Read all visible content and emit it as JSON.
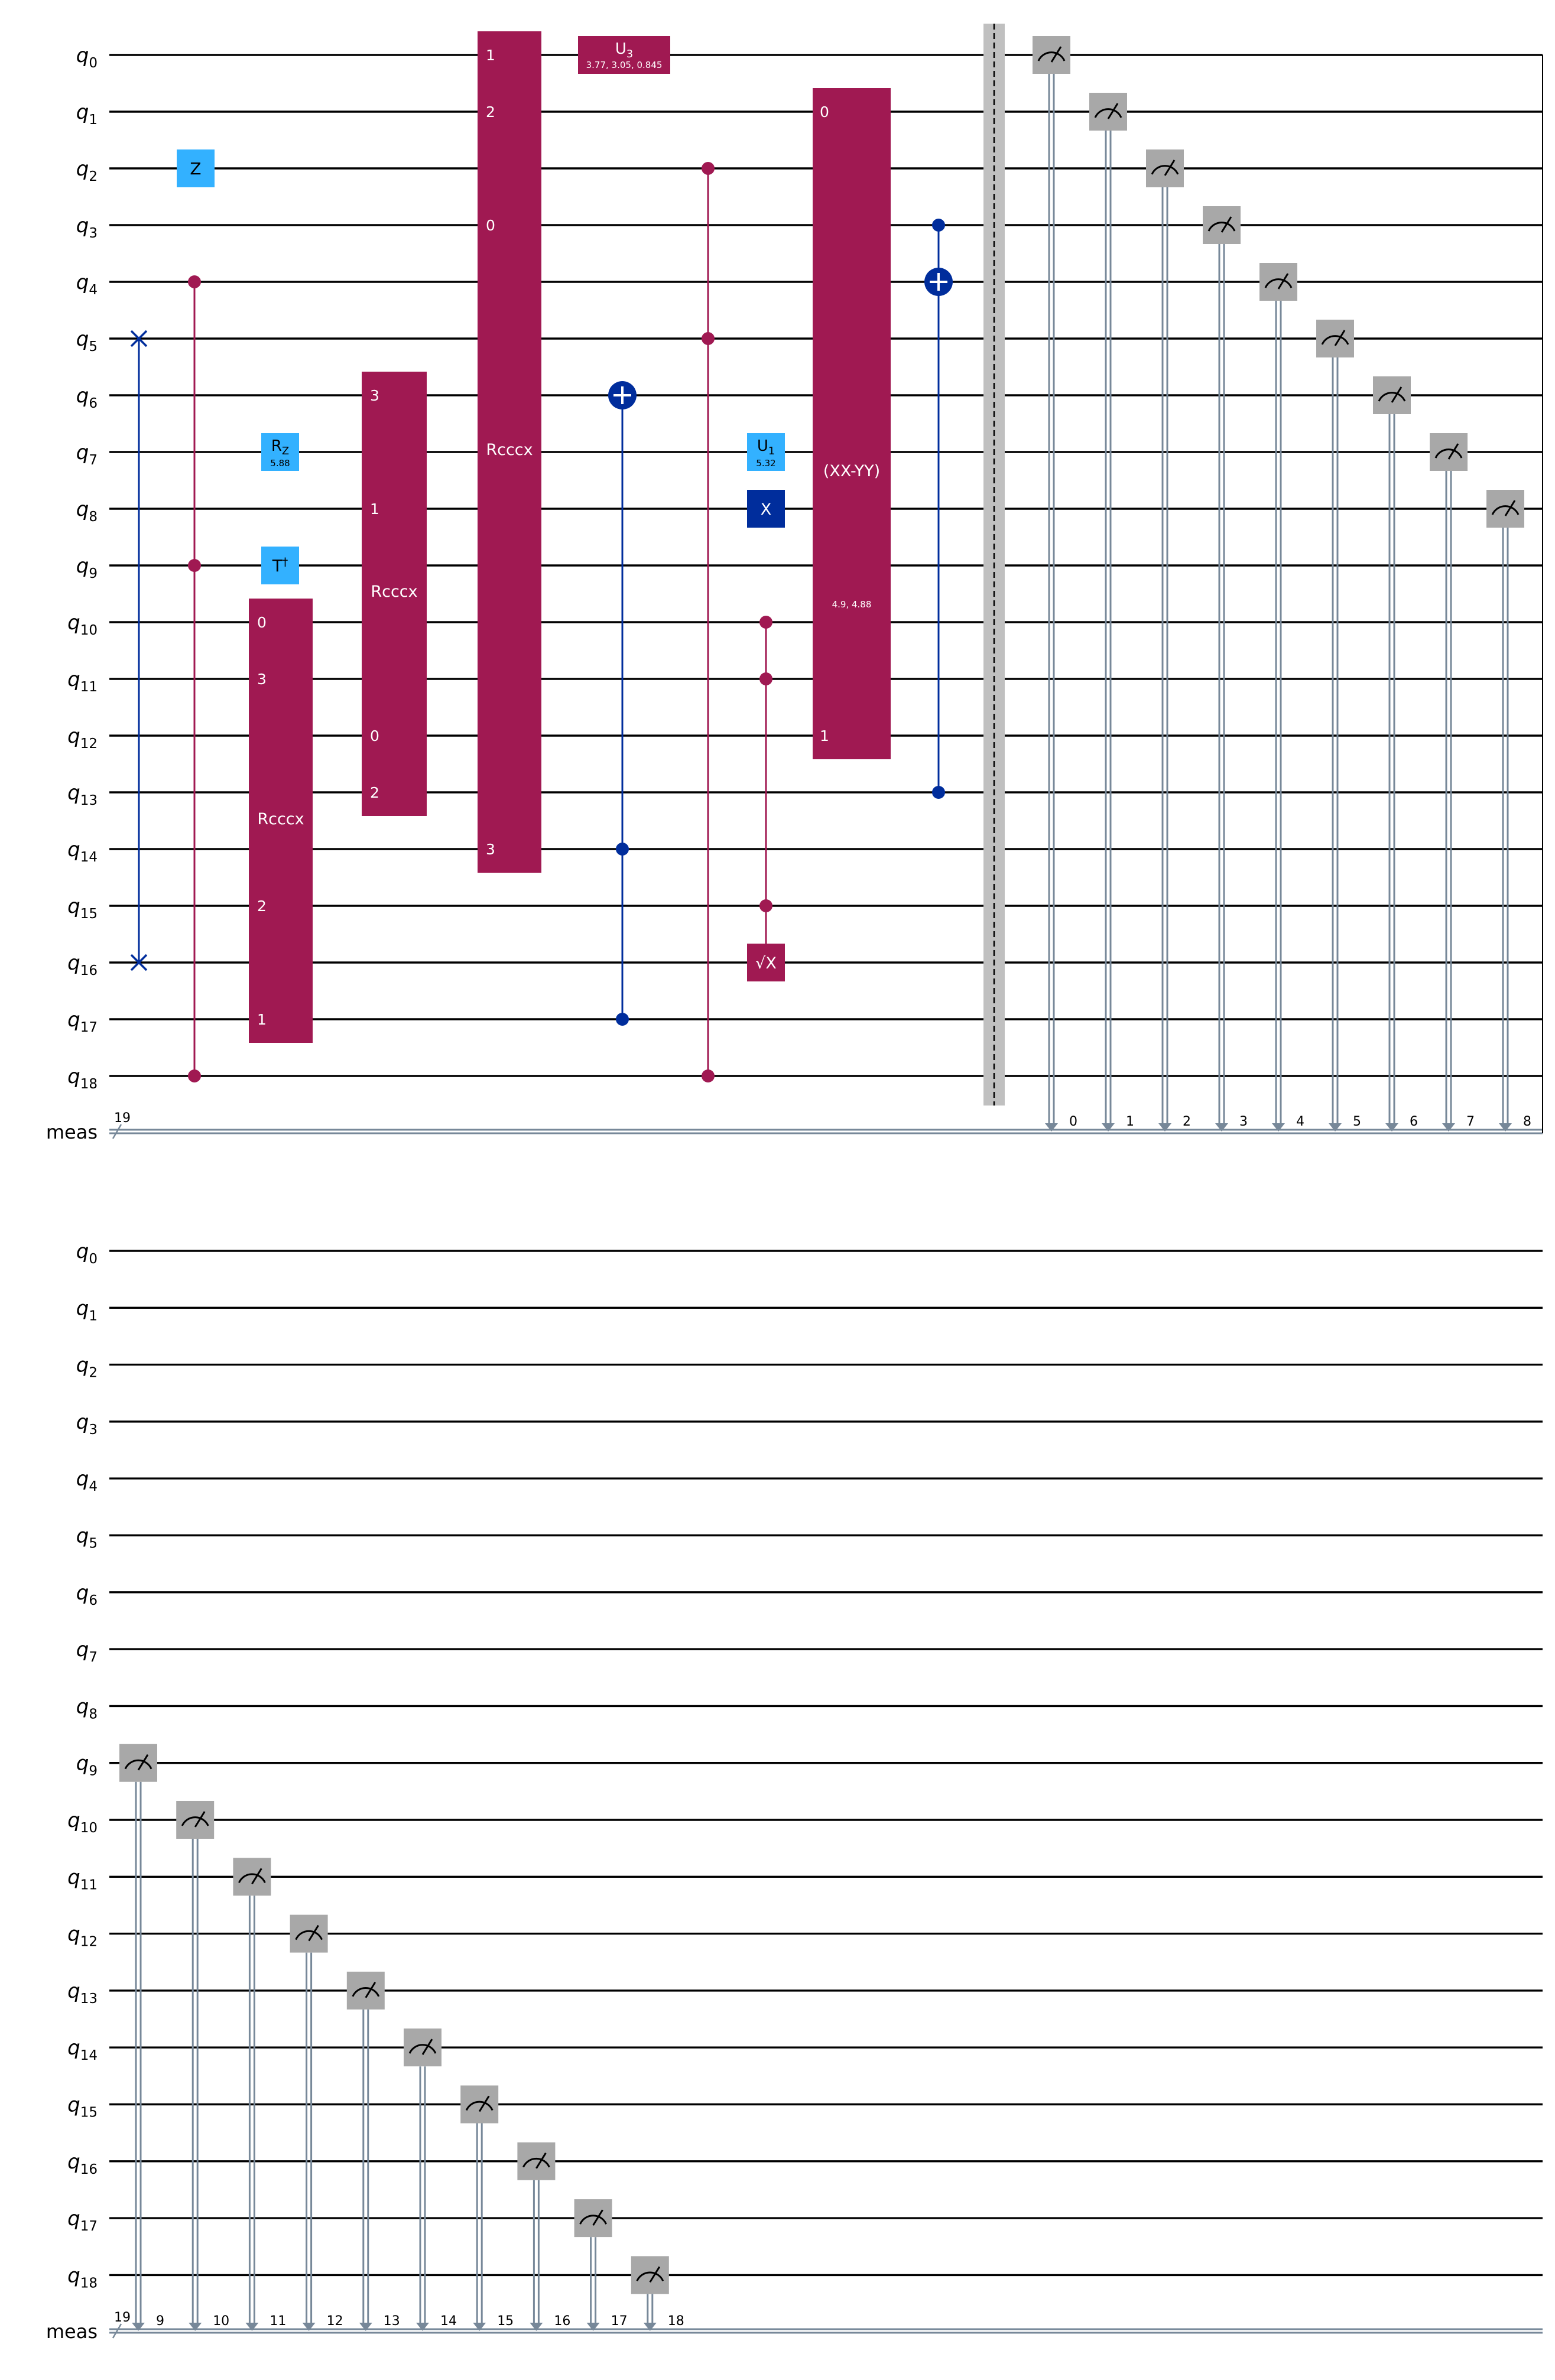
{
  "diagram": {
    "type": "quantum-circuit",
    "qubits": [
      "q0",
      "q1",
      "q2",
      "q3",
      "q4",
      "q5",
      "q6",
      "q7",
      "q8",
      "q9",
      "q10",
      "q11",
      "q12",
      "q13",
      "q14",
      "q15",
      "q16",
      "q17",
      "q18"
    ],
    "classical_register": {
      "label": "meas",
      "size": "19"
    },
    "colors": {
      "multi_qubit_gate": "#a01952",
      "single_qubit_gate": "#33b1ff",
      "pauli_x_gate": "#002d9c",
      "cx": "#002d9c",
      "swap": "#002d9c",
      "measure_box": "#a8a8a8",
      "barrier": "#c0c0c0",
      "classical_wire": "#778899"
    },
    "gates": [
      {
        "kind": "swap",
        "qubits": [
          5,
          16
        ]
      },
      {
        "kind": "single",
        "label": "Z",
        "qubit": 2
      },
      {
        "kind": "multi-control",
        "qubits": [
          4,
          9,
          18
        ]
      },
      {
        "kind": "single",
        "label": "R",
        "sub": "Z",
        "param": "5.88",
        "qubit": 7
      },
      {
        "kind": "single",
        "label": "T",
        "sup": "†",
        "qubit": 9
      },
      {
        "kind": "box",
        "label": "Rcccx",
        "qubits": [
          10,
          17
        ],
        "pins": [
          {
            "qubit": 10,
            "text": "0"
          },
          {
            "qubit": 11,
            "text": "3"
          },
          {
            "qubit": 15,
            "text": "2"
          },
          {
            "qubit": 17,
            "text": "1"
          }
        ]
      },
      {
        "kind": "box",
        "label": "Rcccx",
        "qubits": [
          6,
          13
        ],
        "pins": [
          {
            "qubit": 6,
            "text": "3"
          },
          {
            "qubit": 8,
            "text": "1"
          },
          {
            "qubit": 12,
            "text": "0"
          },
          {
            "qubit": 13,
            "text": "2"
          }
        ]
      },
      {
        "kind": "box",
        "label": "Rcccx",
        "qubits": [
          0,
          14
        ],
        "pins": [
          {
            "qubit": 0,
            "text": "1"
          },
          {
            "qubit": 1,
            "text": "2"
          },
          {
            "qubit": 3,
            "text": "0"
          },
          {
            "qubit": 14,
            "text": "3"
          }
        ]
      },
      {
        "kind": "single-wide",
        "label": "U",
        "sub": "3",
        "param": "3.77, 3.05, 0.845",
        "qubit": 0
      },
      {
        "kind": "cx",
        "target": 6,
        "controls": [
          14,
          17
        ]
      },
      {
        "kind": "multi-control",
        "qubits": [
          2,
          5,
          18
        ]
      },
      {
        "kind": "single",
        "label": "U",
        "sub": "1",
        "param": "5.32",
        "qubit": 7
      },
      {
        "kind": "single-x",
        "label": "X",
        "qubit": 8
      },
      {
        "kind": "controlled-sx",
        "controls": [
          10,
          11,
          15
        ],
        "target": 16,
        "label": "√X"
      },
      {
        "kind": "box",
        "label": "(XX-YY)",
        "param": "4.9, 4.88",
        "qubits": [
          1,
          12
        ],
        "pins": [
          {
            "qubit": 1,
            "text": "0"
          },
          {
            "qubit": 12,
            "text": "1"
          }
        ]
      },
      {
        "kind": "cx",
        "target": 4,
        "controls": [
          3,
          13
        ]
      },
      {
        "kind": "barrier"
      }
    ],
    "measure_top": [
      "0",
      "1",
      "2",
      "3",
      "4",
      "5",
      "6",
      "7",
      "8"
    ],
    "measure_bottom": [
      "9",
      "10",
      "11",
      "12",
      "13",
      "14",
      "15",
      "16",
      "17",
      "18"
    ]
  }
}
